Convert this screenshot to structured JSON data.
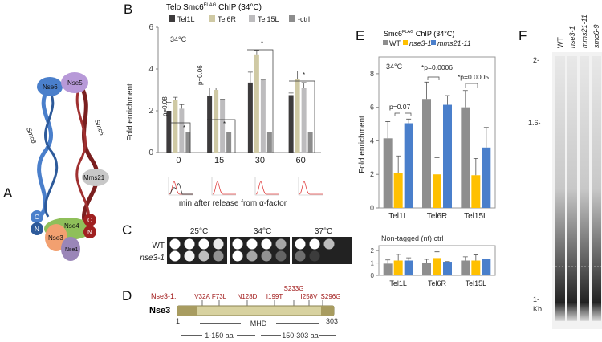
{
  "panels": {
    "a": "A",
    "b": "B",
    "c": "C",
    "d": "D",
    "e": "E",
    "f": "F"
  },
  "panel_a": {
    "labels": [
      "Nse6",
      "Nse5",
      "Smc6",
      "Smc5",
      "Mms21",
      "Nse4",
      "Nse3",
      "Nse1",
      "C",
      "N",
      "C",
      "N"
    ]
  },
  "panel_b": {
    "title": "Telo Smc6FLAG ChIP (34°C)",
    "title_main": "Telo Smc6",
    "title_sup": "FLAG",
    "title_rest": " ChIP (34°C)",
    "temp": "34°C",
    "xlabel": "min after release from α-factor",
    "pvals": [
      "p=0.08",
      "p=0.06",
      "*",
      "*",
      "*",
      "*"
    ]
  },
  "panel_c": {
    "temps": [
      "25°C",
      "34°C",
      "37°C"
    ],
    "strains": [
      "WT",
      "nse3-1"
    ]
  },
  "panel_d": {
    "prefix": "Nse3-1:",
    "mutations": [
      "V32A",
      "F73L",
      "N128D",
      "I199T",
      "S233G",
      "I258V",
      "S296G"
    ],
    "protein": "Nse3",
    "start": "1",
    "end": "303",
    "domain": "MHD",
    "range1": "1-150 aa",
    "range2": "150-303 aa"
  },
  "panel_e": {
    "title_main": "Smc6",
    "title_sup": "FLAG",
    "title_rest": " ChIP (34°C)",
    "temp": "34°C",
    "pvals": [
      "p=0.07",
      "*p=0.0006",
      "*p=0.0005"
    ],
    "nt_title": "Non-tagged (nt) ctrl"
  },
  "panel_f": {
    "lanes": [
      "WT",
      "nse3-1",
      "mms21-11",
      "smc6-9"
    ],
    "markers": [
      "2-",
      "1.6-",
      "1-",
      "Kb"
    ]
  },
  "chart_data": [
    {
      "type": "bar",
      "title": "Telo Smc6FLAG ChIP (34°C)",
      "xlabel": "min after release from α-factor",
      "ylabel": "Fold enrichment",
      "ylim": [
        0,
        6
      ],
      "yticks": [
        "0",
        "2",
        "4",
        "6"
      ],
      "categories": [
        "0",
        "15",
        "30",
        "60"
      ],
      "series": [
        {
          "name": "Tel1L",
          "color": "#3d3b3c",
          "values": [
            2.0,
            2.7,
            3.35,
            2.75
          ],
          "err": [
            0.4,
            0.4,
            0.5,
            0.1
          ]
        },
        {
          "name": "Tel6R",
          "color": "#cfc9a4",
          "values": [
            2.5,
            3.0,
            4.7,
            3.5
          ],
          "err": [
            0.15,
            0.1,
            0.2,
            0.4
          ]
        },
        {
          "name": "Tel15L",
          "color": "#bdbcbe",
          "values": [
            2.1,
            2.5,
            3.45,
            3.1
          ],
          "err": [
            0.2,
            0.05,
            0.02,
            0.25
          ]
        },
        {
          "name": "-ctrl",
          "color": "#8c8c8c",
          "values": [
            1,
            1,
            1,
            1
          ],
          "err": [
            0,
            0,
            0,
            0
          ]
        }
      ]
    },
    {
      "type": "bar",
      "title": "Smc6FLAG ChIP (34°C)",
      "ylabel": "Fold enrichment",
      "ylim": [
        0,
        9
      ],
      "yticks": [
        "0",
        "2",
        "4",
        "6",
        "8"
      ],
      "categories": [
        "Tel1L",
        "Tel6R",
        "Tel15L"
      ],
      "series": [
        {
          "name": "WT",
          "color": "#8e8e8e",
          "values": [
            4.15,
            6.5,
            6.0
          ],
          "err": [
            1.0,
            1.0,
            1.0
          ]
        },
        {
          "name": "nse3-1",
          "color": "#ffc000",
          "values": [
            2.1,
            2.0,
            1.95
          ],
          "err": [
            1.0,
            1.0,
            1.0
          ]
        },
        {
          "name": "mms21-11",
          "color": "#4a7fcb",
          "values": [
            5.05,
            6.15,
            3.6
          ],
          "err": [
            0.25,
            0.55,
            1.2
          ]
        }
      ]
    },
    {
      "type": "bar",
      "title": "Non-tagged (nt) ctrl",
      "ylim": [
        0,
        2.4
      ],
      "yticks": [
        "0",
        "1",
        "2"
      ],
      "categories": [
        "Tel1L",
        "Tel6R",
        "Tel15L"
      ],
      "series": [
        {
          "name": "WT",
          "color": "#8e8e8e",
          "values": [
            0.95,
            1.0,
            1.2
          ],
          "err": [
            0.3,
            0.3,
            0.3
          ]
        },
        {
          "name": "nse3-1",
          "color": "#ffc000",
          "values": [
            1.2,
            1.4,
            1.2
          ],
          "err": [
            0.5,
            0.5,
            0.45
          ]
        },
        {
          "name": "mms21-11",
          "color": "#4a7fcb",
          "values": [
            1.2,
            1.1,
            1.3
          ],
          "err": [
            0.22,
            0.02,
            0.03
          ]
        }
      ]
    }
  ]
}
